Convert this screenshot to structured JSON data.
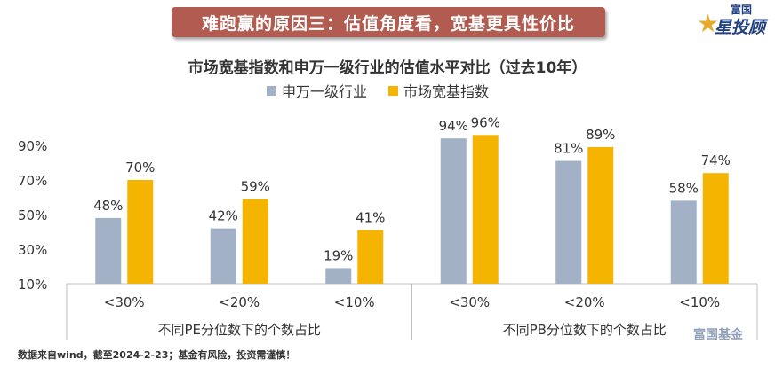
{
  "banner": {
    "text": "难跑赢的原因三：估值角度看，宽基更具性价比"
  },
  "logo": {
    "line1": "富国",
    "line2": "星投顾"
  },
  "footnote": "数据来自wind，截至2024-2-23；基金有风险，投资需谨慎！",
  "watermark": "富国基金",
  "colors": {
    "series1": "#a2b1c6",
    "series2": "#f5b400"
  },
  "chart_data": {
    "type": "bar",
    "title": "市场宽基指数和申万一级行业的估值水平对比（过去10年）",
    "categories": [
      "<30%",
      "<20%",
      "<10%",
      "<30%",
      "<20%",
      "<10%"
    ],
    "groups": [
      {
        "label": "不同PE分位数下的个数占比",
        "categories": [
          "<30%",
          "<20%",
          "<10%"
        ]
      },
      {
        "label": "不同PB分位数下的个数占比",
        "categories": [
          "<30%",
          "<20%",
          "<10%"
        ]
      }
    ],
    "series": [
      {
        "name": "申万一级行业",
        "values": [
          48,
          42,
          19,
          94,
          81,
          58
        ],
        "labels": [
          "48%",
          "42%",
          "19%",
          "94%",
          "81%",
          "58%"
        ]
      },
      {
        "name": "市场宽基指数",
        "values": [
          70,
          59,
          41,
          96,
          89,
          74
        ],
        "labels": [
          "70%",
          "59%",
          "41%",
          "96%",
          "89%",
          "74%"
        ]
      }
    ],
    "yticks": [
      "10%",
      "30%",
      "50%",
      "70%",
      "90%"
    ],
    "ylim": [
      10,
      100
    ],
    "legend_position": "top"
  }
}
